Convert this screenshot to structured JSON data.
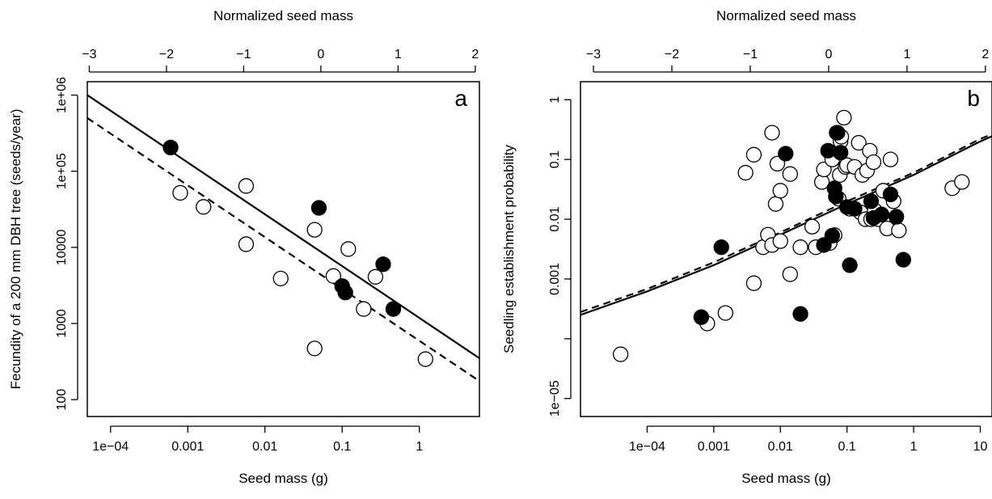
{
  "chart_data": [
    {
      "panel": "a",
      "type": "scatter",
      "title": "",
      "panel_letter": "a",
      "xlabel": "Seed mass (g)",
      "ylabel": "Fecundity of a 200 mm DBH tree (seeds/year)",
      "top_axis_label": "Normalized seed mass",
      "x_scale": "log",
      "y_scale": "log",
      "xlim": [
        5e-05,
        6
      ],
      "ylim": [
        60,
        1500000
      ],
      "x_ticks": [
        0.0001,
        0.001,
        0.01,
        0.1,
        1
      ],
      "x_tick_labels": [
        "1e−04",
        "0.001",
        "0.01",
        "0.1",
        "1"
      ],
      "y_ticks": [
        100,
        1000,
        10000,
        100000,
        1000000
      ],
      "y_tick_labels": [
        "100",
        "1000",
        "10000",
        "1e+05",
        "1e+06"
      ],
      "top_ticks": [
        -3,
        -2,
        -1,
        0,
        1,
        2
      ],
      "top_tick_labels": [
        "−3",
        "−2",
        "−1",
        "0",
        "1",
        "2"
      ],
      "top_axis_map": {
        "value_zero_at_seed_mass": 0.053,
        "units_per_decade": 1.0
      },
      "grid": false,
      "series": [
        {
          "marker": "open-circle",
          "points": [
            [
              0.0008,
              52000
            ],
            [
              0.0016,
              34000
            ],
            [
              0.0057,
              64000
            ],
            [
              0.0057,
              11000
            ],
            [
              0.016,
              3900
            ],
            [
              0.044,
              17000
            ],
            [
              0.044,
              470
            ],
            [
              0.077,
              4200
            ],
            [
              0.12,
              9500
            ],
            [
              0.19,
              1550
            ],
            [
              0.27,
              4100
            ],
            [
              1.2,
              340
            ]
          ]
        },
        {
          "marker": "filled-circle",
          "points": [
            [
              0.0006,
              205000
            ],
            [
              0.05,
              33000
            ],
            [
              0.1,
              3100
            ],
            [
              0.11,
              2550
            ],
            [
              0.34,
              6000
            ],
            [
              0.46,
              1550
            ]
          ]
        }
      ],
      "fit_lines": [
        {
          "style": "solid",
          "x": [
            5e-05,
            6
          ],
          "y": [
            1000000,
            350
          ]
        },
        {
          "style": "dashed",
          "x": [
            5e-05,
            6
          ],
          "y": [
            500000,
            175
          ]
        }
      ]
    },
    {
      "panel": "b",
      "type": "scatter",
      "title": "",
      "panel_letter": "b",
      "xlabel": "Seed mass (g)",
      "ylabel": "Seedling establishment probability",
      "top_axis_label": "Normalized seed mass",
      "x_scale": "log",
      "y_scale": "log",
      "xlim": [
        1e-05,
        15
      ],
      "ylim": [
        5e-06,
        2
      ],
      "x_ticks": [
        0.0001,
        0.001,
        0.01,
        0.1,
        1,
        10
      ],
      "x_tick_labels": [
        "1e−04",
        "0.001",
        "0.01",
        "0.1",
        "1",
        "10"
      ],
      "y_ticks": [
        1e-05,
        0.001,
        0.01,
        0.1,
        1
      ],
      "y_tick_labels": [
        "1e−05",
        "0.001",
        "0.01",
        "0.1",
        "1"
      ],
      "y_minor_ticks": [
        0.0001
      ],
      "top_ticks": [
        -3,
        -2,
        -1,
        0,
        1,
        2
      ],
      "top_tick_labels": [
        "−3",
        "−2",
        "−1",
        "0",
        "1",
        "2"
      ],
      "top_axis_map": {
        "value_zero_at_seed_mass": 0.053,
        "units_per_decade": 0.85
      },
      "grid": false,
      "series": [
        {
          "marker": "open-circle",
          "points": [
            [
              4e-05,
              5.5e-05
            ],
            [
              0.0008,
              0.00018
            ],
            [
              0.0015,
              0.00027
            ],
            [
              0.003,
              0.06
            ],
            [
              0.004,
              0.12
            ],
            [
              0.004,
              0.00085
            ],
            [
              0.0055,
              0.0034
            ],
            [
              0.0065,
              0.0055
            ],
            [
              0.0075,
              0.0037
            ],
            [
              0.0075,
              0.28
            ],
            [
              0.0085,
              0.018
            ],
            [
              0.009,
              0.085
            ],
            [
              0.01,
              0.03
            ],
            [
              0.01,
              0.0043
            ],
            [
              0.014,
              0.057
            ],
            [
              0.014,
              0.0012
            ],
            [
              0.02,
              0.0034
            ],
            [
              0.03,
              0.0075
            ],
            [
              0.034,
              0.0034
            ],
            [
              0.042,
              0.042
            ],
            [
              0.045,
              0.068
            ],
            [
              0.055,
              0.004
            ],
            [
              0.06,
              0.1
            ],
            [
              0.065,
              0.0054
            ],
            [
              0.07,
              0.28
            ],
            [
              0.075,
              0.022
            ],
            [
              0.078,
              0.055
            ],
            [
              0.08,
              0.2
            ],
            [
              0.082,
              0.24
            ],
            [
              0.09,
              0.5
            ],
            [
              0.095,
              0.075
            ],
            [
              0.1,
              0.08
            ],
            [
              0.11,
              0.015
            ],
            [
              0.13,
              0.075
            ],
            [
              0.15,
              0.19
            ],
            [
              0.16,
              0.013
            ],
            [
              0.17,
              0.055
            ],
            [
              0.19,
              0.01
            ],
            [
              0.2,
              0.065
            ],
            [
              0.22,
              0.14
            ],
            [
              0.23,
              0.01
            ],
            [
              0.25,
              0.09
            ],
            [
              0.26,
              0.014
            ],
            [
              0.3,
              0.01
            ],
            [
              0.35,
              0.03
            ],
            [
              0.4,
              0.007
            ],
            [
              0.45,
              0.1
            ],
            [
              0.5,
              0.02
            ],
            [
              0.6,
              0.0065
            ],
            [
              3.8,
              0.033
            ],
            [
              5.3,
              0.042
            ]
          ]
        },
        {
          "marker": "filled-circle",
          "points": [
            [
              0.00065,
              0.00023
            ],
            [
              0.0013,
              0.0034
            ],
            [
              0.012,
              0.125
            ],
            [
              0.02,
              0.00026
            ],
            [
              0.045,
              0.0037
            ],
            [
              0.052,
              0.14
            ],
            [
              0.06,
              0.0053
            ],
            [
              0.065,
              0.033
            ],
            [
              0.068,
              0.024
            ],
            [
              0.072,
              0.28
            ],
            [
              0.08,
              0.13
            ],
            [
              0.1,
              0.016
            ],
            [
              0.11,
              0.0017
            ],
            [
              0.13,
              0.015
            ],
            [
              0.23,
              0.02
            ],
            [
              0.25,
              0.0105
            ],
            [
              0.33,
              0.012
            ],
            [
              0.45,
              0.026
            ],
            [
              0.55,
              0.011
            ],
            [
              0.7,
              0.0021
            ]
          ]
        }
      ],
      "fit_lines": [
        {
          "style": "solid",
          "x": [
            1e-05,
            0.0001,
            0.001,
            0.01,
            0.1,
            1,
            10,
            15
          ],
          "y": [
            0.00025,
            0.00062,
            0.0017,
            0.0055,
            0.018,
            0.055,
            0.2,
            0.245
          ]
        },
        {
          "style": "dashed",
          "x": [
            1e-05,
            0.0001,
            0.001,
            0.01,
            0.1,
            1,
            10,
            15
          ],
          "y": [
            0.00028,
            0.00068,
            0.0019,
            0.006,
            0.02,
            0.06,
            0.22,
            0.265
          ]
        }
      ]
    }
  ]
}
